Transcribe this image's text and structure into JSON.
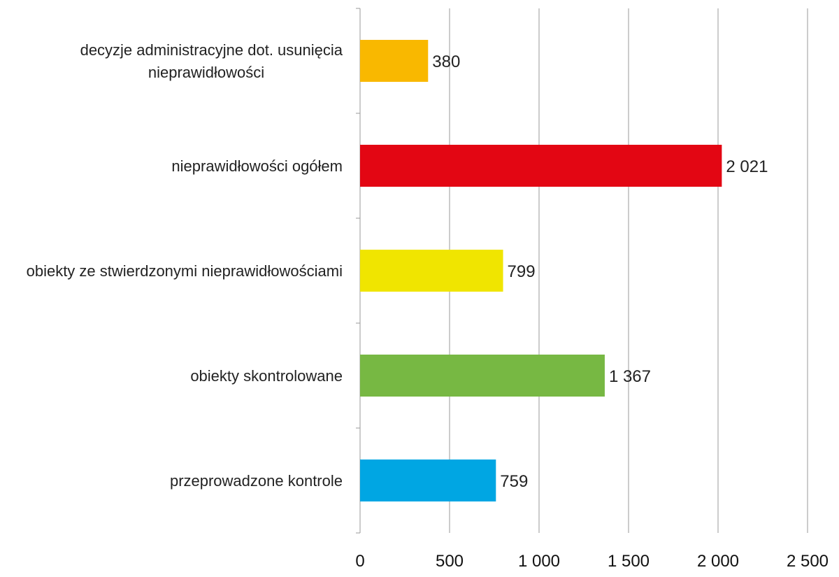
{
  "chart_data": {
    "type": "bar",
    "orientation": "horizontal",
    "categories": [
      "decyzje administracyjne dot. usunięcia nieprawidłowości",
      "nieprawidłowości ogółem",
      "obiekty ze stwierdzonymi nieprawidłowościami",
      "obiekty skontrolowane",
      "przeprowadzone kontrole"
    ],
    "category_lines": [
      [
        "decyzje administracyjne dot. usunięcia",
        "nieprawidłowości"
      ],
      [
        "nieprawidłowości ogółem"
      ],
      [
        "obiekty ze stwierdzonymi nieprawidłowościami"
      ],
      [
        "obiekty skontrolowane"
      ],
      [
        "przeprowadzone kontrole"
      ]
    ],
    "values": [
      380,
      2021,
      799,
      1367,
      759
    ],
    "value_labels": [
      "380",
      "2 021",
      "799",
      "1 367",
      "759"
    ],
    "colors": [
      "#f9b800",
      "#e30613",
      "#f0e500",
      "#77b843",
      "#00a6e3"
    ],
    "xlim": [
      0,
      2500
    ],
    "xticks": [
      0,
      500,
      1000,
      1500,
      2000,
      2500
    ],
    "xtick_labels": [
      "0",
      "500",
      "1 000",
      "1 500",
      "2 000",
      "2 500"
    ],
    "grid": "vertical",
    "legend": "none",
    "title": "",
    "xlabel": "",
    "ylabel": ""
  }
}
